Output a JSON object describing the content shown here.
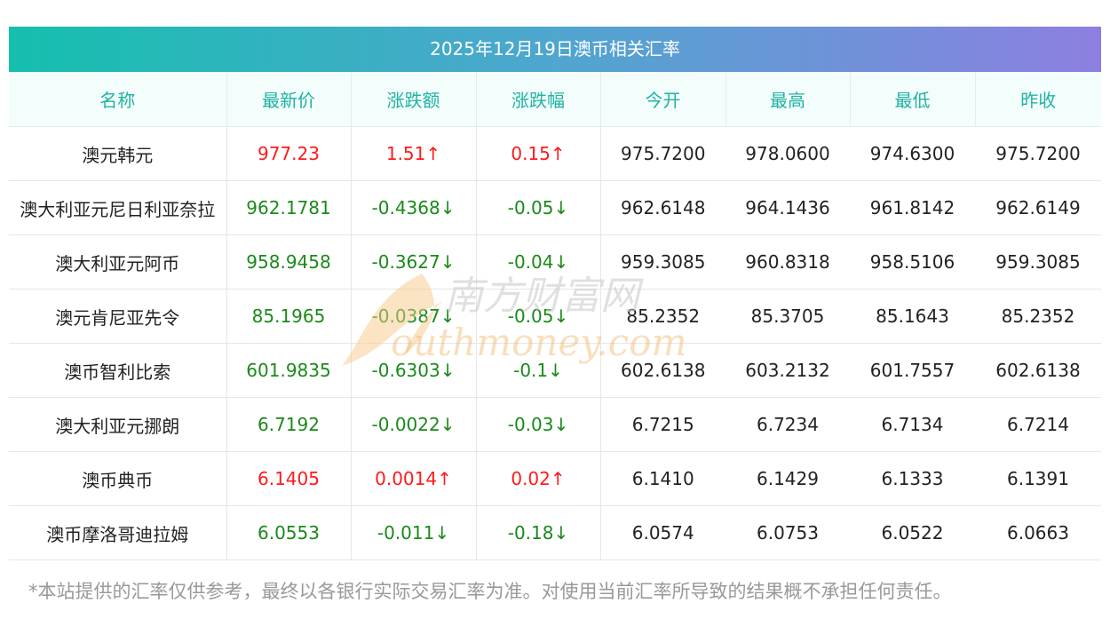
{
  "title": "2025年12月19日澳币相关汇率",
  "headers": [
    "名称",
    "最新价",
    "涨跌额",
    "涨跌幅",
    "今开",
    "最高",
    "最低",
    "昨收"
  ],
  "rows": [
    {
      "name": "澳元韩元",
      "latest": "977.23",
      "change": "1.51↑",
      "pct": "0.15↑",
      "open": "975.7200",
      "high": "978.0600",
      "low": "974.6300",
      "prev": "975.7200",
      "dir": "up"
    },
    {
      "name": "澳大利亚元尼日利亚奈拉",
      "latest": "962.1781",
      "change": "-0.4368↓",
      "pct": "-0.05↓",
      "open": "962.6148",
      "high": "964.1436",
      "low": "961.8142",
      "prev": "962.6149",
      "dir": "down"
    },
    {
      "name": "澳大利亚元阿币",
      "latest": "958.9458",
      "change": "-0.3627↓",
      "pct": "-0.04↓",
      "open": "959.3085",
      "high": "960.8318",
      "low": "958.5106",
      "prev": "959.3085",
      "dir": "down"
    },
    {
      "name": "澳元肯尼亚先令",
      "latest": "85.1965",
      "change": "-0.0387↓",
      "pct": "-0.05↓",
      "open": "85.2352",
      "high": "85.3705",
      "low": "85.1643",
      "prev": "85.2352",
      "dir": "down"
    },
    {
      "name": "澳币智利比索",
      "latest": "601.9835",
      "change": "-0.6303↓",
      "pct": "-0.1↓",
      "open": "602.6138",
      "high": "603.2132",
      "low": "601.7557",
      "prev": "602.6138",
      "dir": "down"
    },
    {
      "name": "澳大利亚元挪朗",
      "latest": "6.7192",
      "change": "-0.0022↓",
      "pct": "-0.03↓",
      "open": "6.7215",
      "high": "6.7234",
      "low": "6.7134",
      "prev": "6.7214",
      "dir": "down"
    },
    {
      "name": "澳币典币",
      "latest": "6.1405",
      "change": "0.0014↑",
      "pct": "0.02↑",
      "open": "6.1410",
      "high": "6.1429",
      "low": "6.1333",
      "prev": "6.1391",
      "dir": "up"
    },
    {
      "name": "澳币摩洛哥迪拉姆",
      "latest": "6.0553",
      "change": "-0.011↓",
      "pct": "-0.18↓",
      "open": "6.0574",
      "high": "6.0753",
      "low": "6.0522",
      "prev": "6.0663",
      "dir": "down"
    }
  ],
  "watermark": {
    "top": "南方财富网",
    "bottom": "outhmoney.com"
  },
  "disclaimer": "*本站提供的汇率仅供参考，最终以各银行实际交易汇率为准。对使用当前汇率所导致的结果概不承担任何责任。",
  "colors": {
    "up": "#ff1a1a",
    "down": "#1a8a1a",
    "header_text": "#1fb3a3"
  }
}
